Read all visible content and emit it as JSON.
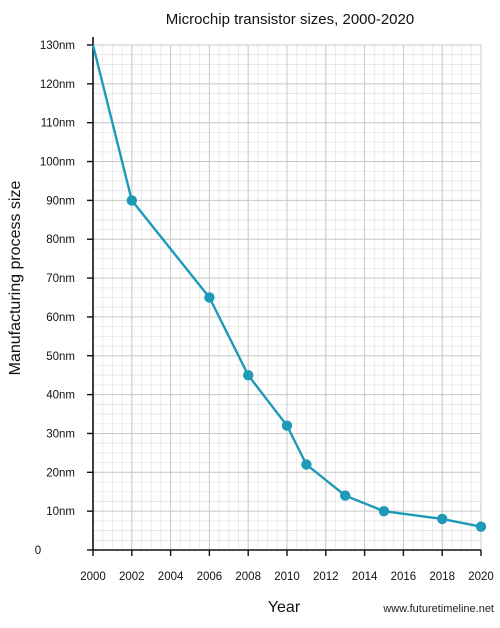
{
  "chart_data": {
    "type": "line",
    "title": "Microchip transistor sizes, 2000-2020",
    "xlabel": "Year",
    "ylabel": "Manufacturing process size",
    "x": [
      2000,
      2002,
      2006,
      2008,
      2010,
      2011,
      2013,
      2015,
      2018,
      2020
    ],
    "series": [
      {
        "values": [
          130,
          90,
          65,
          45,
          32,
          22,
          14,
          10,
          8,
          6
        ]
      }
    ],
    "xlim": [
      2000,
      2020
    ],
    "ylim": [
      0,
      130
    ],
    "x_ticks": [
      "2000",
      "2002",
      "2004",
      "2006",
      "2008",
      "2010",
      "2012",
      "2014",
      "2016",
      "2018",
      "2020"
    ],
    "y_ticks": [
      "0",
      "10nm",
      "20nm",
      "30nm",
      "40nm",
      "50nm",
      "60nm",
      "70nm",
      "80nm",
      "90nm",
      "100nm",
      "110nm",
      "120nm",
      "130nm"
    ],
    "grid": true,
    "legend": "none",
    "colors": {
      "line": "#1e9ab8",
      "marker": "#1e9ab8",
      "grid_minor": "#e6e6e6",
      "grid_major": "#c8c8c8",
      "axis": "#111111"
    },
    "watermark": "www.futuretimeline.net"
  }
}
